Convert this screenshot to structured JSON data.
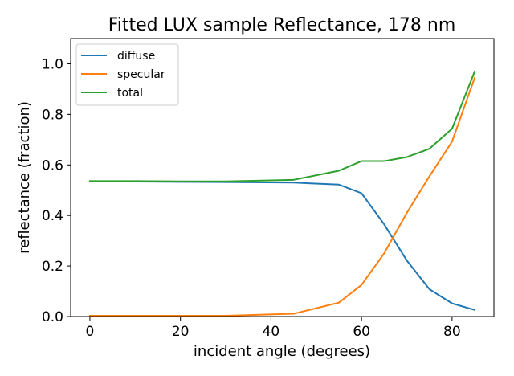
{
  "chart_data": {
    "type": "line",
    "title": "Fitted LUX sample Reflectance, 178 nm",
    "xlabel": "incident angle (degrees)",
    "ylabel": "reflectance (fraction)",
    "xlim": [
      -4.25,
      89.25
    ],
    "ylim": [
      0.0,
      1.1
    ],
    "xticks": [
      0,
      20,
      40,
      60,
      80
    ],
    "xtick_labels": [
      "0",
      "20",
      "40",
      "60",
      "80"
    ],
    "yticks": [
      0.0,
      0.2,
      0.4,
      0.6,
      0.8,
      1.0
    ],
    "ytick_labels": [
      "0.0",
      "0.2",
      "0.4",
      "0.6",
      "0.8",
      "1.0"
    ],
    "grid": false,
    "legend_position": "upper-left",
    "x": [
      0,
      10,
      20,
      30,
      45,
      55,
      60,
      65,
      70,
      75,
      80,
      85
    ],
    "series": [
      {
        "name": "diffuse",
        "color": "#1f77b4",
        "values": [
          0.534,
          0.534,
          0.533,
          0.532,
          0.53,
          0.522,
          0.488,
          0.365,
          0.222,
          0.108,
          0.052,
          0.026
        ]
      },
      {
        "name": "specular",
        "color": "#ff7f0e",
        "values": [
          0.003,
          0.003,
          0.003,
          0.003,
          0.011,
          0.055,
          0.125,
          0.25,
          0.41,
          0.555,
          0.692,
          0.945
        ]
      },
      {
        "name": "total",
        "color": "#2ca02c",
        "values": [
          0.536,
          0.536,
          0.535,
          0.535,
          0.541,
          0.577,
          0.615,
          0.615,
          0.631,
          0.664,
          0.743,
          0.97
        ]
      }
    ]
  }
}
